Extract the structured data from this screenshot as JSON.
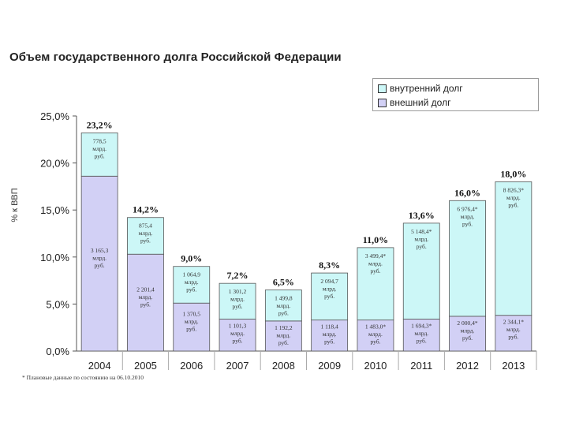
{
  "title": "Объем государственного долга Российской Федерации",
  "footnote": "* Плановые данные по состоянию на 06.10.2010",
  "colors": {
    "internal": "#ccf7f7",
    "external": "#d2d0f5",
    "edge": "#555555",
    "grid": "#aaaaaa"
  },
  "chart_data": {
    "type": "bar",
    "stacked": true,
    "ylabel": "% к ВВП",
    "ylim": [
      0,
      25
    ],
    "yticks": [
      "0,0%",
      "5,0%",
      "10,0%",
      "15,0%",
      "20,0%",
      "25,0%"
    ],
    "categories": [
      "2004",
      "2005",
      "2006",
      "2007",
      "2008",
      "2009",
      "2010",
      "2011",
      "2012",
      "2013"
    ],
    "legend": {
      "position": "top-right",
      "entries": [
        "внутренний долг",
        "внешний долг"
      ]
    },
    "totals": [
      "23,2%",
      "14,2%",
      "9,0%",
      "7,2%",
      "6,5%",
      "8,3%",
      "11,0%",
      "13,6%",
      "16,0%",
      "18,0%"
    ],
    "total_values": [
      23.2,
      14.2,
      9.0,
      7.2,
      6.5,
      8.3,
      11.0,
      13.6,
      16.0,
      18.0
    ],
    "series": [
      {
        "name": "внешний долг",
        "values": [
          18.6,
          10.3,
          5.1,
          3.4,
          3.2,
          3.3,
          3.3,
          3.4,
          3.7,
          3.8
        ],
        "labels": [
          [
            "3 165,3",
            "млрд.",
            "руб."
          ],
          [
            "2 201,4",
            "млрд.",
            "руб."
          ],
          [
            "1 370,5",
            "млрд.",
            "руб."
          ],
          [
            "1 101,3",
            "млрд.",
            "руб."
          ],
          [
            "1 192,2",
            "млрд.",
            "руб."
          ],
          [
            "1 118,4",
            "млрд.",
            "руб."
          ],
          [
            "1 483,0*",
            "млрд.",
            "руб."
          ],
          [
            "1 694,3*",
            "млрд.",
            "руб."
          ],
          [
            "2 000,4*",
            "млрд.",
            "руб."
          ],
          [
            "2 344,1*",
            "млрд.",
            "руб."
          ]
        ]
      },
      {
        "name": "внутренний долг",
        "values": [
          4.6,
          3.9,
          3.9,
          3.8,
          3.3,
          5.0,
          7.7,
          10.2,
          12.3,
          14.2
        ],
        "labels": [
          [
            "778,5",
            "млрд.",
            "руб."
          ],
          [
            "875,4",
            "млрд.",
            "руб."
          ],
          [
            "1 064,9",
            "млрд.",
            "руб."
          ],
          [
            "1 301,2",
            "млрд.",
            "руб."
          ],
          [
            "1 499,8",
            "млрд.",
            "руб."
          ],
          [
            "2 094,7",
            "млрд.",
            "руб."
          ],
          [
            "3 499,4*",
            "млрд.",
            "руб."
          ],
          [
            "5 148,4*",
            "млрд.",
            "руб."
          ],
          [
            "6 976,4*",
            "млрд.",
            "руб."
          ],
          [
            "8 826,3*",
            "млрд.",
            "руб."
          ]
        ]
      }
    ]
  }
}
